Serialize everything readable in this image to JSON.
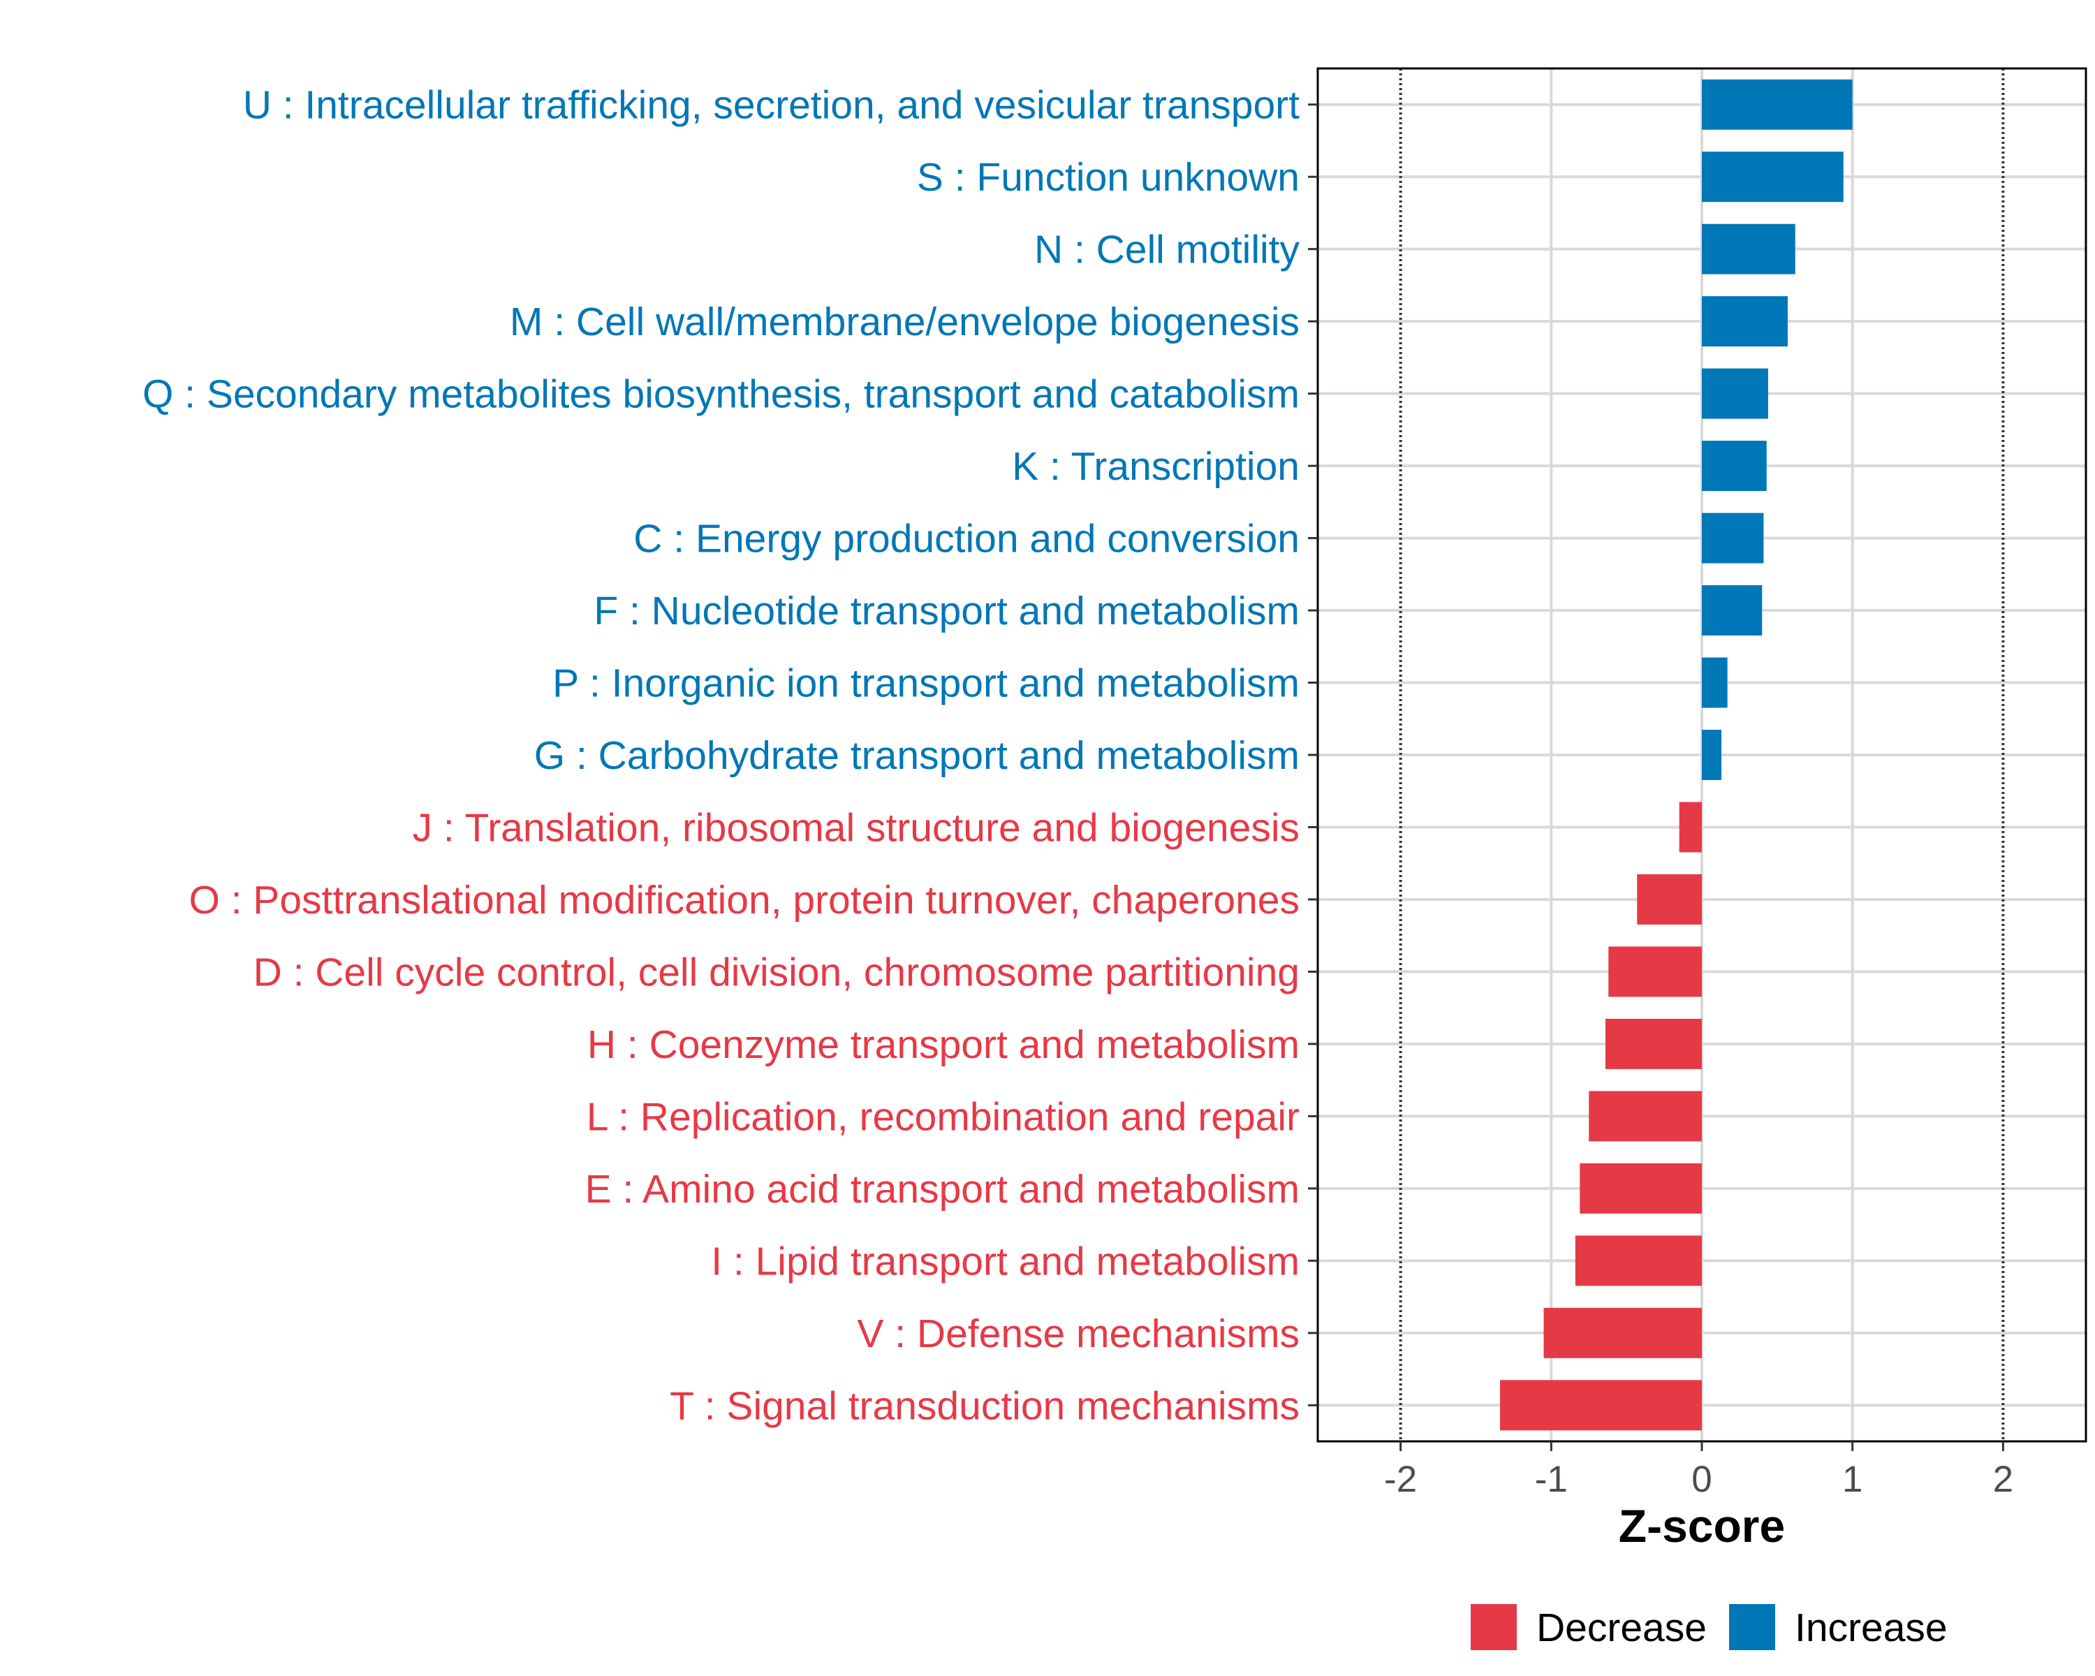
{
  "chart_data": {
    "type": "bar",
    "orientation": "horizontal",
    "xlabel": "Z-score",
    "ylabel": "",
    "xlim": [
      -2.55,
      2.55
    ],
    "xticks": [
      -2,
      -1,
      0,
      1,
      2
    ],
    "tick_labels": [
      "-2",
      "-1",
      "0",
      "1",
      "2"
    ],
    "reference_lines": [
      -2,
      2
    ],
    "grid": true,
    "legend_position": "bottom",
    "colors": {
      "Decrease": "#E63946",
      "Increase": "#0077B6"
    },
    "legend": [
      {
        "name": "Decrease",
        "color": "#E63946"
      },
      {
        "name": "Increase",
        "color": "#0077B6"
      }
    ],
    "categories": [
      "U : Intracellular trafficking, secretion, and vesicular transport",
      "S : Function unknown",
      "N : Cell motility",
      "M : Cell wall/membrane/envelope biogenesis",
      "Q : Secondary metabolites biosynthesis, transport and catabolism",
      "K : Transcription",
      "C : Energy production and conversion",
      "F : Nucleotide transport and metabolism",
      "P : Inorganic ion transport and metabolism",
      "G : Carbohydrate transport and metabolism",
      "J : Translation, ribosomal structure and biogenesis",
      "O : Posttranslational modification, protein turnover, chaperones",
      "D : Cell cycle control, cell division, chromosome partitioning",
      "H : Coenzyme transport and metabolism",
      "L : Replication, recombination and repair",
      "E : Amino acid transport and metabolism",
      "I : Lipid transport and metabolism",
      "V : Defense mechanisms",
      "T : Signal transduction mechanisms"
    ],
    "values": [
      1.0,
      0.94,
      0.62,
      0.57,
      0.44,
      0.43,
      0.41,
      0.4,
      0.17,
      0.13,
      -0.15,
      -0.43,
      -0.62,
      -0.64,
      -0.75,
      -0.81,
      -0.84,
      -1.05,
      -1.34
    ],
    "groups": [
      "Increase",
      "Increase",
      "Increase",
      "Increase",
      "Increase",
      "Increase",
      "Increase",
      "Increase",
      "Increase",
      "Increase",
      "Decrease",
      "Decrease",
      "Decrease",
      "Decrease",
      "Decrease",
      "Decrease",
      "Decrease",
      "Decrease",
      "Decrease"
    ]
  }
}
